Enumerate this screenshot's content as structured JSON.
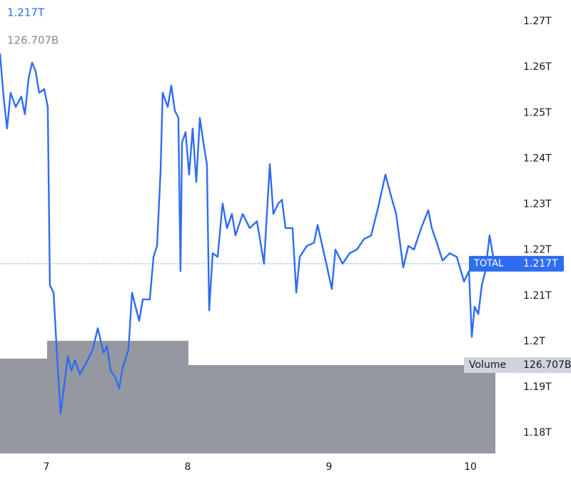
{
  "chart_data": {
    "type": "line",
    "xlim": [
      6.672,
      10.308
    ],
    "xticks": [
      7,
      8,
      9,
      10
    ],
    "ylim": [
      1.1755,
      1.2747
    ],
    "yticks": [
      {
        "value": 1.18,
        "label": "1.18T"
      },
      {
        "value": 1.19,
        "label": "1.19T"
      },
      {
        "value": 1.2,
        "label": "1.2T"
      },
      {
        "value": 1.21,
        "label": "1.21T"
      },
      {
        "value": 1.22,
        "label": "1.22T"
      },
      {
        "value": 1.23,
        "label": "1.23T"
      },
      {
        "value": 1.24,
        "label": "1.24T"
      },
      {
        "value": 1.25,
        "label": "1.25T"
      },
      {
        "value": 1.26,
        "label": "1.26T"
      },
      {
        "value": 1.27,
        "label": "1.27T"
      }
    ],
    "series": [
      {
        "name": "TOTAL",
        "color": "#2f6cf0",
        "x": [
          6.672,
          6.697,
          6.722,
          6.747,
          6.783,
          6.823,
          6.848,
          6.874,
          6.899,
          6.924,
          6.949,
          6.985,
          7.01,
          7.025,
          7.051,
          7.076,
          7.101,
          7.126,
          7.152,
          7.177,
          7.202,
          7.237,
          7.278,
          7.328,
          7.364,
          7.404,
          7.429,
          7.455,
          7.49,
          7.515,
          7.54,
          7.581,
          7.606,
          7.631,
          7.657,
          7.682,
          7.732,
          7.758,
          7.783,
          7.808,
          7.823,
          7.859,
          7.884,
          7.909,
          7.934,
          7.949,
          7.96,
          7.985,
          8.01,
          8.035,
          8.061,
          8.086,
          8.111,
          8.136,
          8.152,
          8.177,
          8.212,
          8.247,
          8.278,
          8.313,
          8.338,
          8.389,
          8.439,
          8.49,
          8.54,
          8.581,
          8.606,
          8.641,
          8.667,
          8.692,
          8.742,
          8.768,
          8.793,
          8.843,
          8.894,
          8.919,
          8.97,
          9.02,
          9.045,
          9.096,
          9.146,
          9.197,
          9.247,
          9.298,
          9.348,
          9.399,
          9.439,
          9.475,
          9.525,
          9.561,
          9.601,
          9.652,
          9.702,
          9.727,
          9.763,
          9.803,
          9.854,
          9.904,
          9.955,
          9.99,
          10.01,
          10.03,
          10.056,
          10.081,
          10.106,
          10.136,
          10.157,
          10.172
        ],
        "values": [
          1.263,
          1.2536,
          1.2466,
          1.2544,
          1.2513,
          1.2536,
          1.2497,
          1.2575,
          1.261,
          1.2591,
          1.2544,
          1.2552,
          1.2513,
          1.2123,
          1.2107,
          1.1967,
          1.1842,
          1.1904,
          1.1967,
          1.1936,
          1.1959,
          1.1928,
          1.1951,
          1.1982,
          1.2029,
          1.1975,
          1.199,
          1.1936,
          1.192,
          1.1897,
          1.1943,
          1.1982,
          1.2107,
          1.2076,
          1.2045,
          1.2092,
          1.2092,
          1.2185,
          1.2209,
          1.2372,
          1.2544,
          1.2513,
          1.256,
          1.2505,
          1.2489,
          1.2154,
          1.2435,
          1.2458,
          1.2365,
          1.2466,
          1.2349,
          1.2489,
          1.2435,
          1.2388,
          1.2068,
          1.2193,
          1.2185,
          1.2302,
          1.2248,
          1.2279,
          1.2232,
          1.2279,
          1.2248,
          1.2263,
          1.217,
          1.2388,
          1.2279,
          1.2302,
          1.231,
          1.2248,
          1.2248,
          1.2107,
          1.2185,
          1.2209,
          1.2216,
          1.2255,
          1.2185,
          1.2115,
          1.2201,
          1.217,
          1.2193,
          1.2201,
          1.2224,
          1.2232,
          1.2294,
          1.2365,
          1.2318,
          1.2279,
          1.2162,
          1.2209,
          1.2201,
          1.2248,
          1.2287,
          1.2248,
          1.2216,
          1.2177,
          1.2193,
          1.2185,
          1.2131,
          1.2154,
          1.201,
          1.2076,
          1.206,
          1.2123,
          1.2154,
          1.2232,
          1.2193,
          1.217
        ]
      }
    ],
    "last_price": {
      "value": 1.217,
      "label": "1.217T"
    },
    "volume": {
      "name": "Volume",
      "color": "#9598a1",
      "bins": [
        6.5,
        7.005,
        8.005,
        10.177
      ],
      "values": [
        135.9,
        161.5,
        126.707
      ],
      "lim": [
        0,
        650
      ]
    },
    "last_volume": {
      "value": 126.707,
      "label": "126.707B"
    }
  }
}
